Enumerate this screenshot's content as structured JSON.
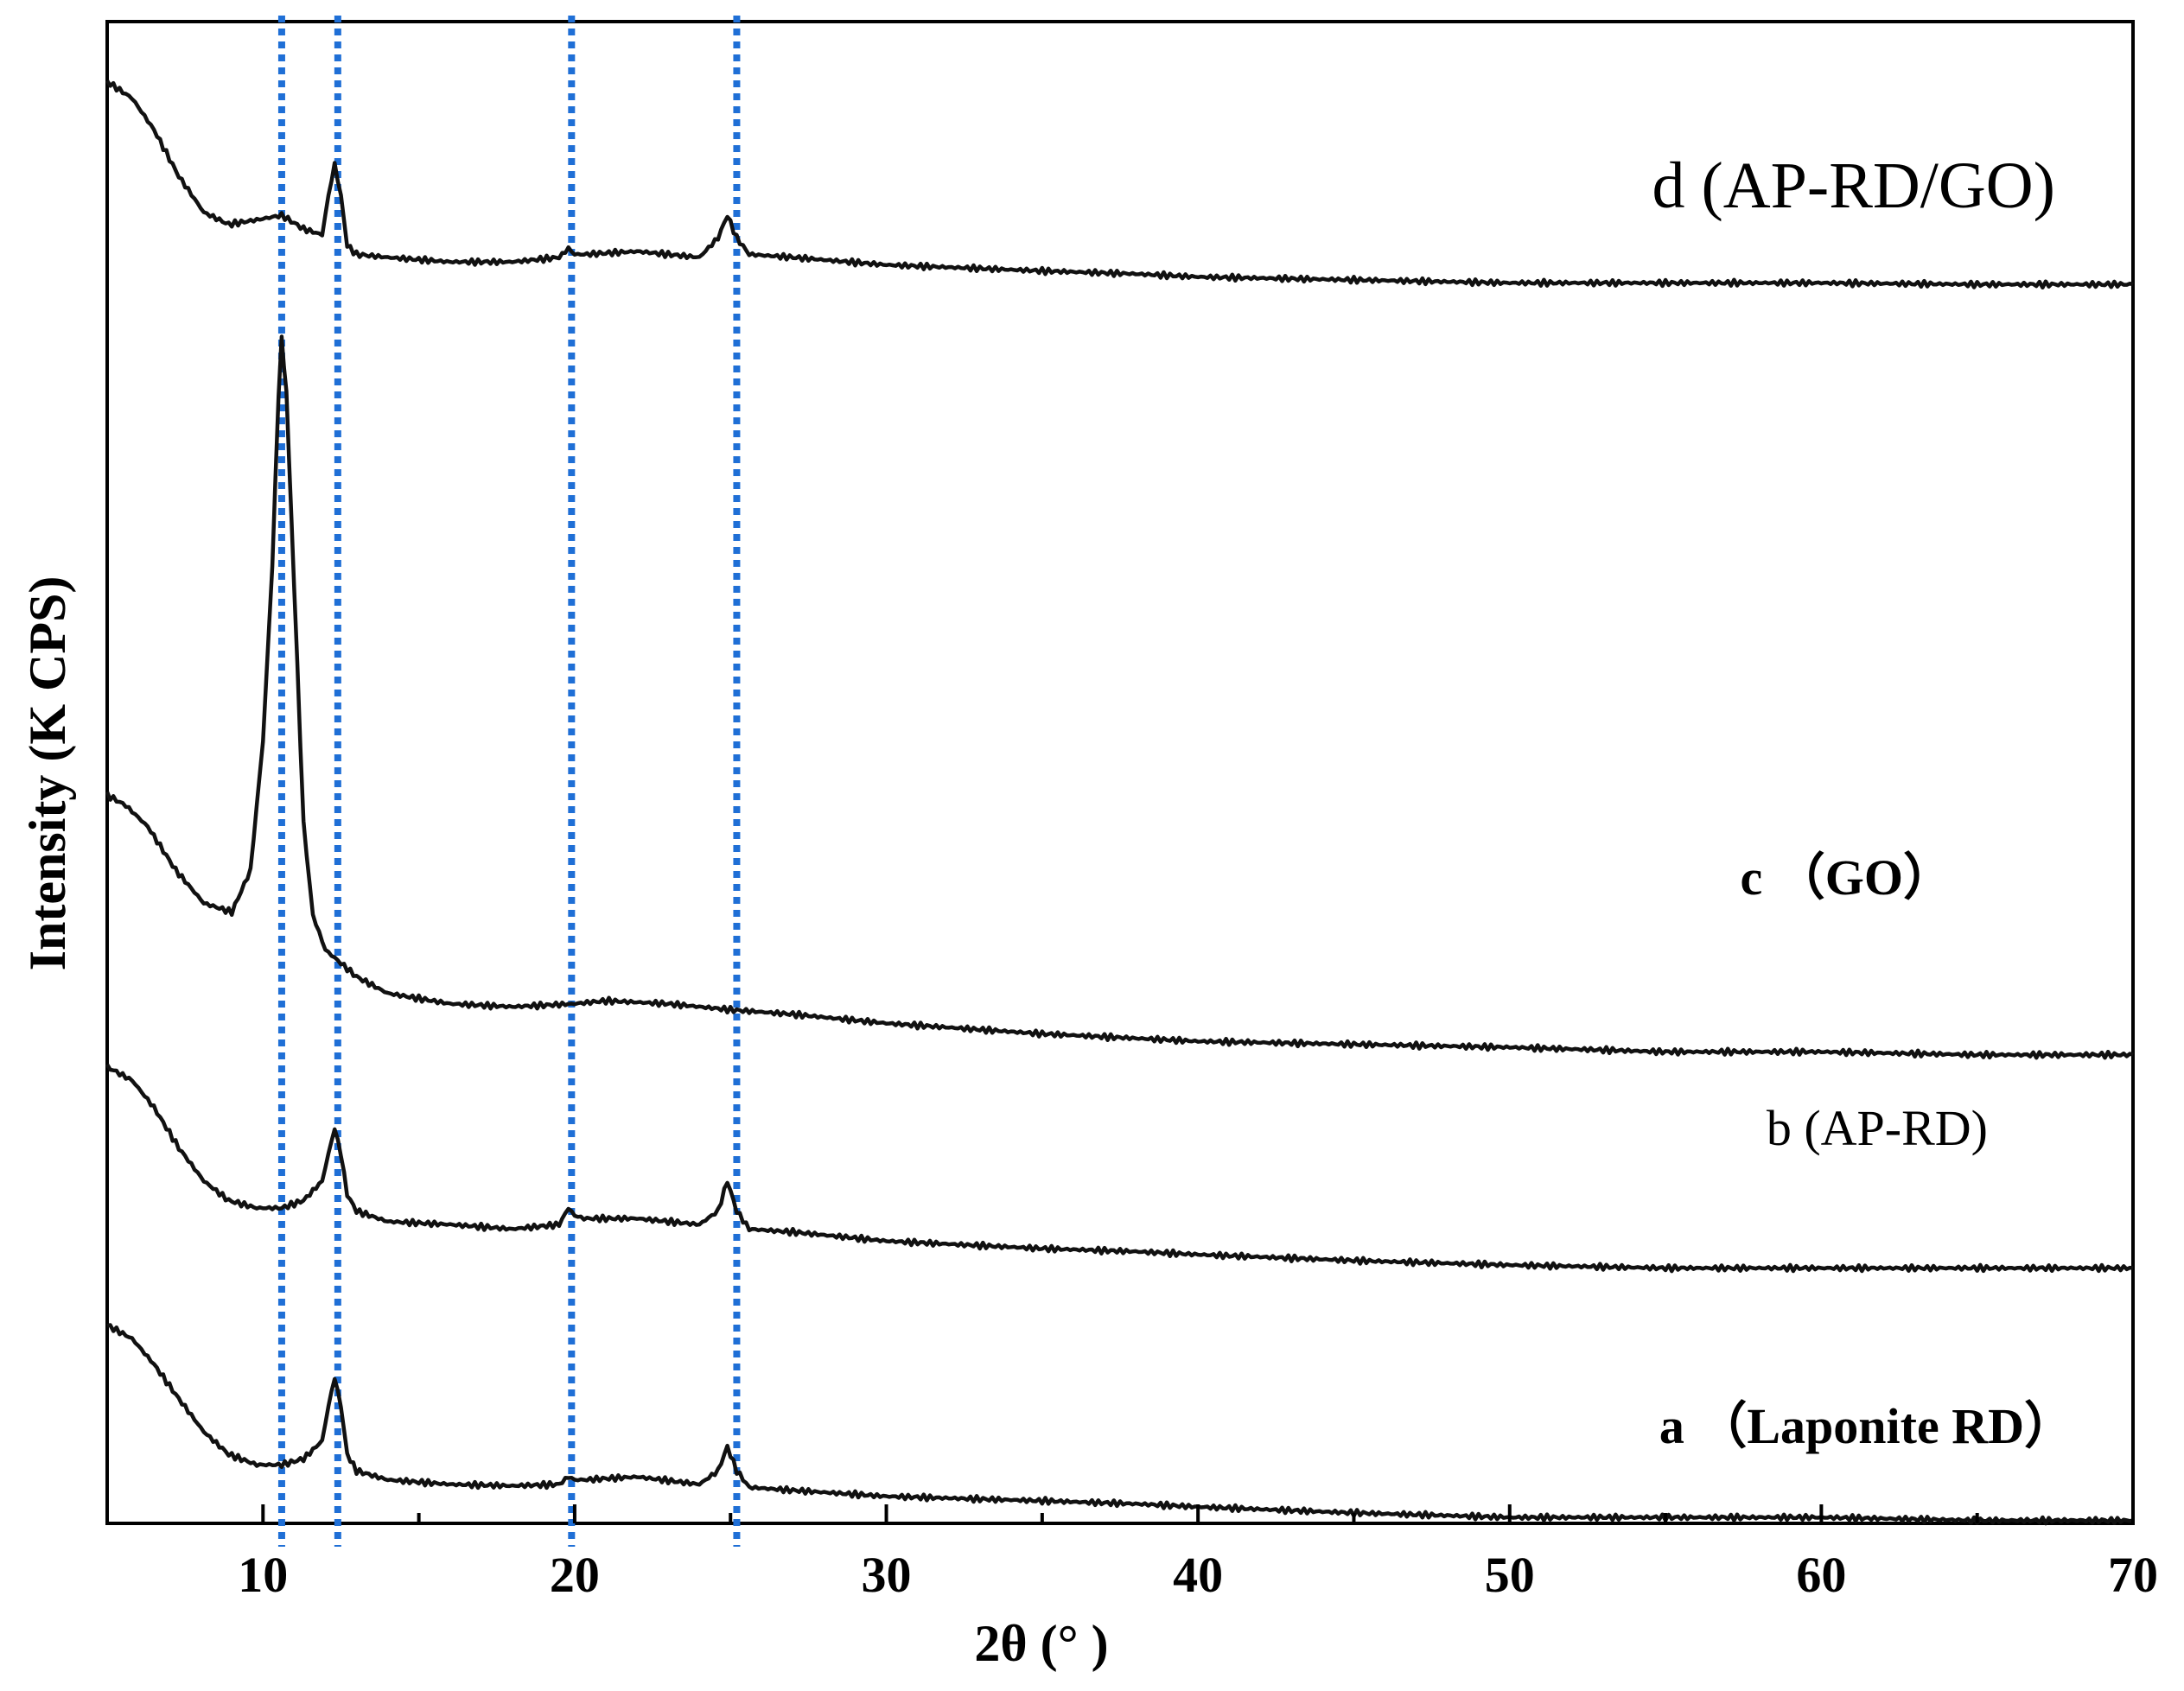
{
  "chart_data": {
    "type": "line",
    "title": "",
    "xlabel": "2θ (°  )",
    "ylabel": "Intensity (K CPS)",
    "xlim": [
      5,
      70
    ],
    "ylim": [
      0,
      100
    ],
    "xticks": [
      10,
      20,
      30,
      40,
      50,
      60,
      70
    ],
    "xtick_labels": [
      "10",
      "20",
      "30",
      "40",
      "50",
      "60",
      "70"
    ],
    "y_tick_labels_shown": false,
    "grid": false,
    "reference_lines": {
      "style": "dotted",
      "color": "#1f6fd6",
      "x": [
        10.6,
        12.4,
        19.9,
        25.2
      ]
    },
    "series": [
      {
        "name": "a  （Laponite  RD）",
        "label_style": "bold",
        "peaks": [
          12.3,
          19.9,
          24.9
        ],
        "x": [
          5,
          5.8,
          6.5,
          7.3,
          8.1,
          8.9,
          9.8,
          10.6,
          11.3,
          11.9,
          12.1,
          12.3,
          12.5,
          12.7,
          13,
          14,
          16,
          18,
          19.5,
          19.8,
          20,
          20.3,
          22,
          24,
          24.6,
          24.9,
          25.2,
          25.6,
          27,
          30,
          35,
          38,
          40,
          45,
          50,
          55,
          60,
          65,
          70
        ],
        "y": [
          13.2,
          12.3,
          10.6,
          8.3,
          6.1,
          4.6,
          3.9,
          3.9,
          4.3,
          5.5,
          7.8,
          9.7,
          7.8,
          4.6,
          3.5,
          2.9,
          2.6,
          2.5,
          2.6,
          3.1,
          2.9,
          2.9,
          3.1,
          2.6,
          3.5,
          5.1,
          3.5,
          2.4,
          2.2,
          1.8,
          1.5,
          1.3,
          1.1,
          0.7,
          0.4,
          0.4,
          0.4,
          0.2,
          0.2
        ]
      },
      {
        "name": "b (AP-RD)",
        "label_style": "regular",
        "peaks": [
          12.3,
          19.9,
          24.9
        ],
        "x": [
          5,
          5.8,
          6.5,
          7.3,
          8.1,
          8.9,
          9.8,
          10.6,
          11.3,
          11.9,
          12.1,
          12.3,
          12.5,
          12.7,
          13,
          14,
          16,
          18,
          19.5,
          19.8,
          20,
          20.3,
          22,
          24,
          24.6,
          24.9,
          25.2,
          25.6,
          27,
          30,
          35,
          38,
          40,
          45,
          50,
          55,
          60,
          65,
          70
        ],
        "y": [
          30.4,
          29.5,
          27.7,
          25,
          22.8,
          21.5,
          21,
          21,
          21.5,
          22.8,
          24.6,
          26.3,
          24.6,
          21.9,
          20.8,
          20.1,
          19.9,
          19.6,
          19.9,
          21,
          20.5,
          20.3,
          20.3,
          19.9,
          20.8,
          22.8,
          20.8,
          19.6,
          19.4,
          18.8,
          18.3,
          18.1,
          17.9,
          17.5,
          17.2,
          17,
          17,
          17,
          17
        ]
      },
      {
        "name": "c  （GO）",
        "label_style": "bold",
        "peaks": [
          10.6
        ],
        "x": [
          5,
          5.6,
          6.3,
          7.2,
          8.1,
          9,
          9.6,
          10,
          10.3,
          10.5,
          10.6,
          10.75,
          11,
          11.3,
          11.6,
          12,
          13,
          14,
          16,
          18,
          20,
          21,
          23,
          25,
          27,
          30,
          35,
          40,
          45,
          50,
          55,
          60,
          65,
          70
        ],
        "y": [
          48.5,
          47.8,
          46.4,
          43.5,
          41.3,
          40.7,
          43.5,
          52.1,
          63.8,
          75.2,
          78.9,
          75.2,
          62.4,
          46.6,
          40.5,
          38.2,
          36.4,
          35.3,
          34.6,
          34.4,
          34.6,
          34.8,
          34.6,
          34.2,
          33.9,
          33.3,
          32.6,
          32.1,
          31.9,
          31.7,
          31.4,
          31.4,
          31.2,
          31.2
        ]
      },
      {
        "name": "d (AP-RD/GO)",
        "label_style": "large",
        "peaks": [
          12.3,
          19.9,
          24.9
        ],
        "x": [
          5,
          5.8,
          6.5,
          7.3,
          8.1,
          8.9,
          9.8,
          10.6,
          11.3,
          11.9,
          12.1,
          12.3,
          12.5,
          12.7,
          13,
          14,
          16,
          18,
          19.5,
          19.8,
          20,
          20.3,
          22,
          24,
          24.6,
          24.9,
          25.2,
          25.6,
          27,
          30,
          35,
          38,
          40,
          45,
          50,
          55,
          60,
          65,
          70
        ],
        "y": [
          96,
          94.9,
          92.8,
          89.7,
          87.3,
          86.5,
          86.8,
          87.1,
          86.2,
          85.8,
          88.4,
          90.5,
          88.4,
          85.1,
          84.5,
          84.3,
          84,
          84,
          84.3,
          84.9,
          84.5,
          84.5,
          84.7,
          84.3,
          85.6,
          87.1,
          85.6,
          84.5,
          84.3,
          83.8,
          83.4,
          83.2,
          83,
          82.8,
          82.6,
          82.6,
          82.6,
          82.5,
          82.5
        ]
      }
    ]
  }
}
